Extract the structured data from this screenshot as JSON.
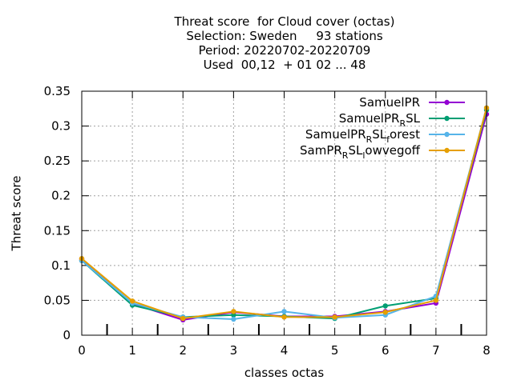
{
  "chart_data": {
    "type": "line",
    "title_lines": [
      "Threat score  for Cloud cover (octas)",
      "Selection: Sweden     93 stations",
      "Period: 20220702-20220709",
      "Used  00,12  + 01 02 ... 48"
    ],
    "xlabel": "classes octas",
    "ylabel": "Threat score",
    "xlim": [
      0,
      8
    ],
    "ylim": [
      0,
      0.35
    ],
    "x_ticks": [
      "0",
      "1",
      "2",
      "3",
      "4",
      "5",
      "6",
      "7",
      "8"
    ],
    "y_ticks": [
      "0",
      "0.05",
      "0.1",
      "0.15",
      "0.2",
      "0.25",
      "0.3",
      "0.35"
    ],
    "grid": true,
    "legend_position": "top-right",
    "x": [
      0,
      1,
      2,
      3,
      4,
      5,
      6,
      7,
      8
    ],
    "series": [
      {
        "name": "SamuelPR",
        "legend": [
          {
            "t": "SamuelPR",
            "sub": false
          }
        ],
        "color": "#9400d3",
        "values": [
          0.109,
          0.045,
          0.022,
          0.033,
          0.027,
          0.027,
          0.034,
          0.046,
          0.317
        ]
      },
      {
        "name": "SamuelPR_RSL",
        "legend": [
          {
            "t": "SamuelPR",
            "sub": false
          },
          {
            "t": "R",
            "sub": true
          },
          {
            "t": "SL",
            "sub": false
          }
        ],
        "color": "#009e73",
        "values": [
          0.107,
          0.043,
          0.026,
          0.029,
          0.027,
          0.024,
          0.042,
          0.053,
          0.323
        ]
      },
      {
        "name": "SamuelPR_RSL_forest",
        "legend": [
          {
            "t": "SamuelPR",
            "sub": false
          },
          {
            "t": "R",
            "sub": true
          },
          {
            "t": "SL",
            "sub": false
          },
          {
            "t": "f",
            "sub": true
          },
          {
            "t": "orest",
            "sub": false
          }
        ],
        "color": "#56b4e9",
        "values": [
          0.107,
          0.046,
          0.026,
          0.023,
          0.034,
          0.025,
          0.029,
          0.056,
          0.326
        ]
      },
      {
        "name": "SamPR_RSL_lowvegoff",
        "legend": [
          {
            "t": "SamPR",
            "sub": false
          },
          {
            "t": "R",
            "sub": true
          },
          {
            "t": "SL",
            "sub": false
          },
          {
            "t": "l",
            "sub": true
          },
          {
            "t": "owvegoff",
            "sub": false
          }
        ],
        "color": "#e69f00",
        "values": [
          0.11,
          0.049,
          0.024,
          0.034,
          0.026,
          0.026,
          0.033,
          0.05,
          0.326
        ]
      }
    ]
  }
}
